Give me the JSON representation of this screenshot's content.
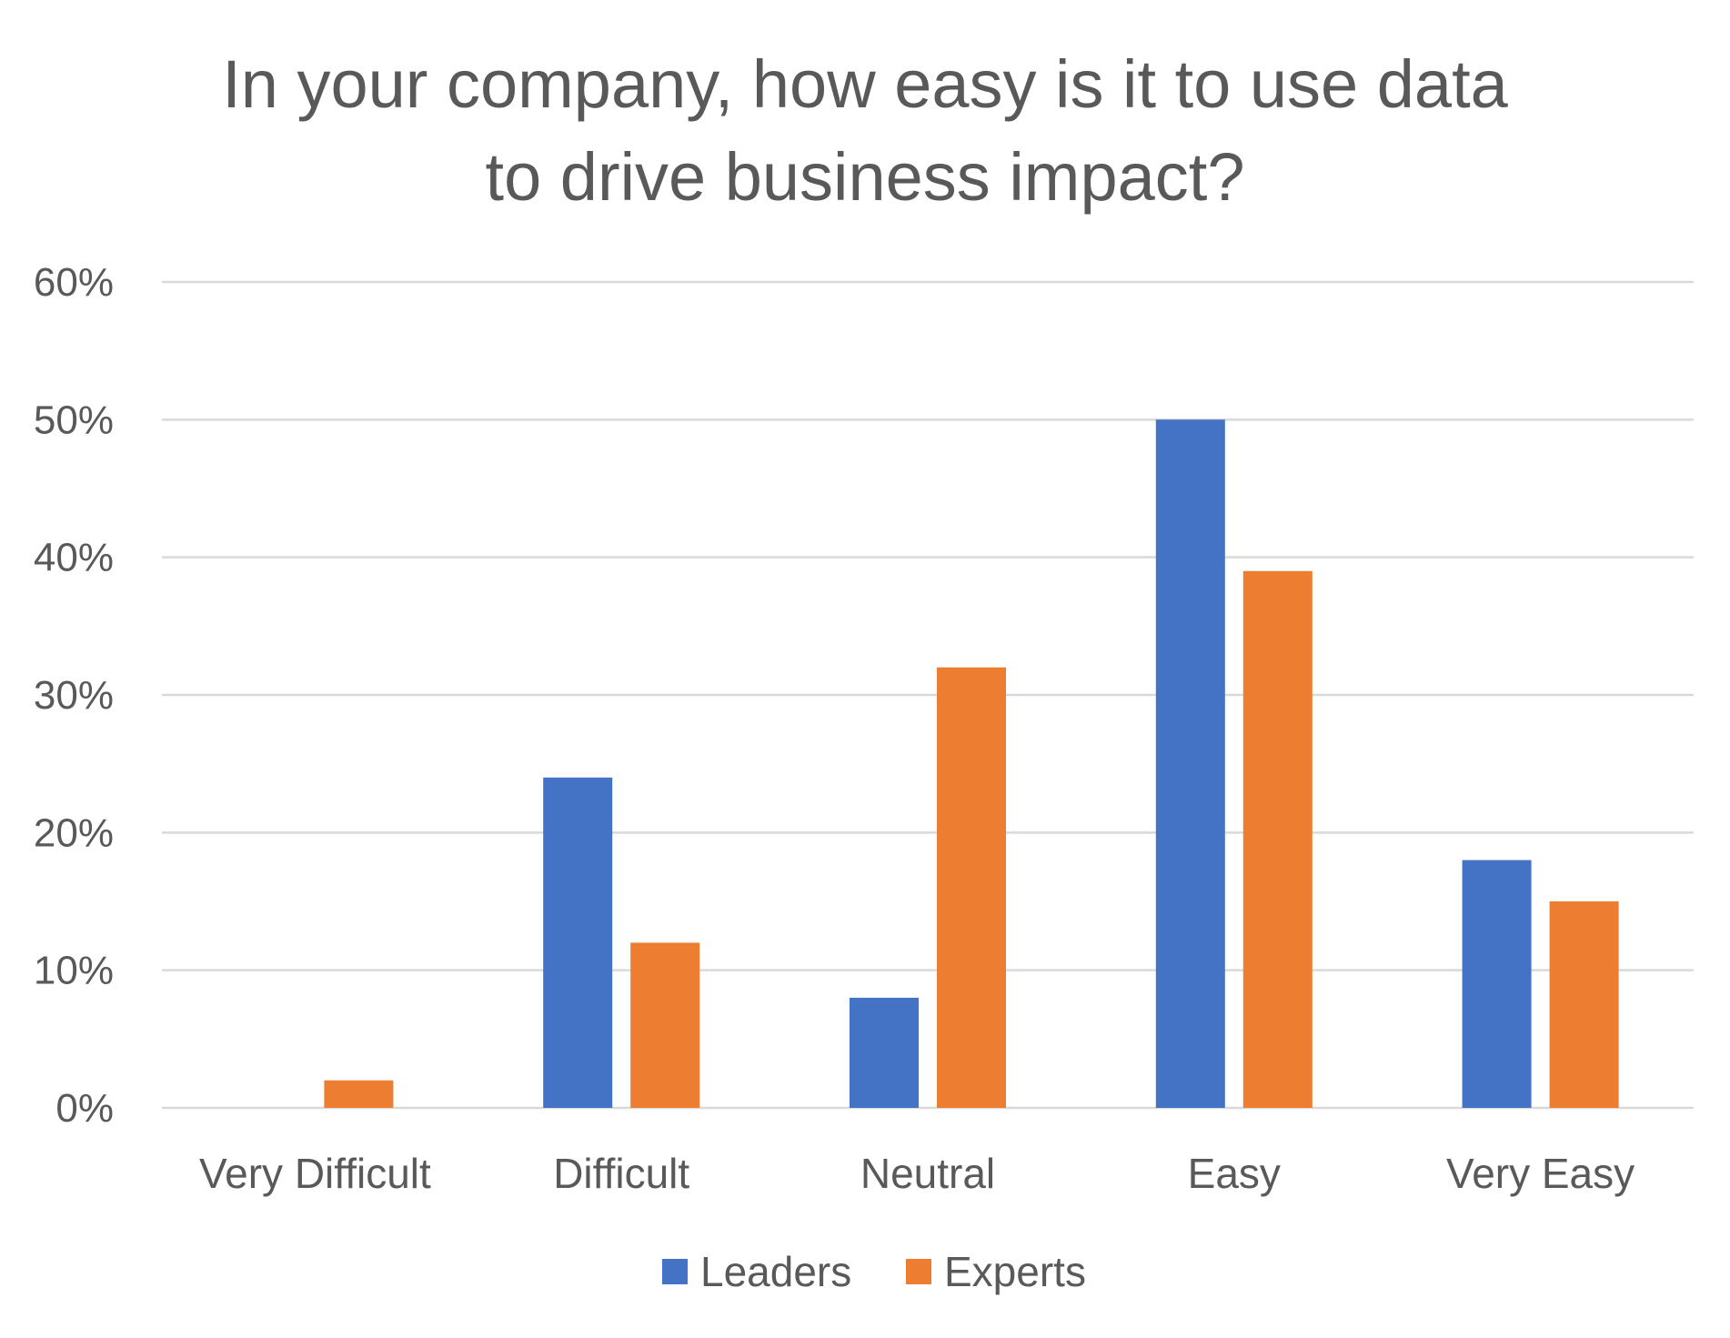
{
  "chart_data": {
    "type": "bar",
    "title_lines": [
      "In your company, how easy is it to use data",
      "to drive business impact?"
    ],
    "xlabel": "",
    "ylabel": "",
    "categories": [
      "Very Difficult",
      "Difficult",
      "Neutral",
      "Easy",
      "Very Easy"
    ],
    "series": [
      {
        "name": "Leaders",
        "color": "#4472C4",
        "values": [
          0,
          24,
          8,
          50,
          18
        ]
      },
      {
        "name": "Experts",
        "color": "#ED7D31",
        "values": [
          2,
          12,
          32,
          39,
          15
        ]
      }
    ],
    "ylim": [
      0,
      60
    ],
    "yticks": [
      0,
      10,
      20,
      30,
      40,
      50,
      60
    ],
    "ytick_labels": [
      "0%",
      "10%",
      "20%",
      "30%",
      "40%",
      "50%",
      "60%"
    ],
    "grid": true,
    "legend_position": "bottom-center"
  }
}
